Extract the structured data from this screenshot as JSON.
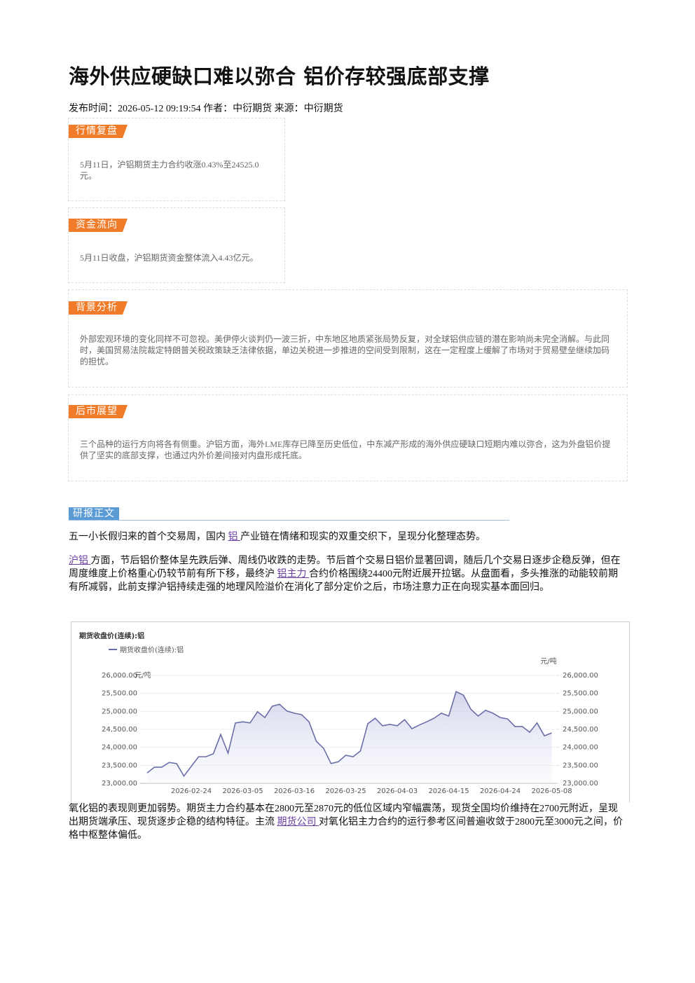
{
  "header": {
    "title": "海外供应硬缺口难以弥合 铝价存较强底部支撑",
    "meta": "发布时间：2026-05-12 09:19:54 作者：中衍期货 来源：中衍期货"
  },
  "sections": [
    {
      "label": "行情复盘",
      "text": "5月11日，沪铝期货主力合约收涨0.43%至24525.0元。"
    },
    {
      "label": "资金流向",
      "text": "5月11日收盘，沪铝期货资金整体流入4.43亿元。"
    },
    {
      "label": "背景分析",
      "text": "外部宏观环境的变化同样不可忽视。美伊停火谈判仍一波三折，中东地区地质紧张局势反复，对全球铝供应链的潜在影响尚未完全消解。与此同时，美国贸易法院裁定特朗普关税政策缺乏法律依据，单边关税进一步推进的空间受到限制，这在一定程度上缓解了市场对于贸易壁垒继续加码的担忧。"
    },
    {
      "label": "后市展望",
      "text": "三个品种的运行方向将各有侧重。沪铝方面，海外LME库存已降至历史低位，中东减产形成的海外供应硬缺口短期内难以弥合，这为外盘铝价提供了坚实的底部支撑，也通过内外价差间接对内盘形成托底。"
    }
  ],
  "report_label": "研报正文",
  "paragraphs": [
    [
      "五一小长假归来的首个交易周，国内 ",
      {
        "link": "铝 "
      },
      "产业链在情绪和现实的双重交织下，呈现分化整理态势。"
    ],
    [
      {
        "link": "沪铝 "
      },
      "方面，节后铝价整体呈先跌后弹、周线仍收跌的走势。节后首个交易日铝价显著回调，随后几个交易日逐步企稳反弹，但在周度维度上价格重心仍较节前有所下移，最终沪 ",
      {
        "link": "铝主力 "
      },
      "合约价格围绕24400元附近展开拉锯。从盘面看，多头推涨的动能较前期有所减弱，此前支撑沪铝持续走强的地理风险溢价在消化了部分定价之后，市场注意力正在向现实基本面回归。"
    ],
    [
      "氧化铝的表现则更加弱势。期货主力合约基本在2800元至2870元的低位区域内窄幅震荡，现货全国均价维持在2700元附近，呈现出期货端承压、现货逐步企稳的结构特征。主流 ",
      {
        "link": "期货公司 "
      },
      "对氧化铝主力合约的运行参考区间普遍收敛于2800元至3000元之间，价格中枢整体偏低。"
    ]
  ],
  "chart_data": {
    "type": "line",
    "title": "期货收盘价(连续):铝",
    "y_label": "元/吨",
    "y2_label": "元/吨",
    "categories": [
      null,
      null,
      null,
      null,
      null,
      null,
      "2026-02-24",
      null,
      null,
      null,
      null,
      null,
      null,
      "2026-03-05",
      null,
      null,
      null,
      null,
      null,
      null,
      "2026-03-16",
      null,
      null,
      null,
      null,
      null,
      null,
      "2026-03-25",
      null,
      null,
      null,
      null,
      null,
      null,
      "2026-04-03",
      null,
      null,
      null,
      null,
      null,
      null,
      "2026-04-15",
      null,
      null,
      null,
      null,
      null,
      null,
      "2026-04-24",
      null,
      null,
      null,
      null,
      null,
      null,
      "2026-05-08"
    ],
    "series": [
      {
        "name": "期货收盘价(连续):铝",
        "color": "#6a6ea8",
        "values": [
          23290,
          23450,
          23450,
          23580,
          23550,
          23200,
          23470,
          23740,
          23740,
          23820,
          24360,
          23840,
          24680,
          24710,
          24680,
          24990,
          24830,
          25140,
          25200,
          25010,
          24950,
          24910,
          24710,
          24170,
          23970,
          23550,
          23600,
          23780,
          23740,
          23900,
          24660,
          24810,
          24600,
          24640,
          24600,
          24770,
          24520,
          24620,
          24710,
          24810,
          24950,
          24870,
          25550,
          25450,
          25060,
          24870,
          25030,
          24950,
          24830,
          24790,
          24580,
          24580,
          24420,
          24680,
          24320,
          24400
        ]
      }
    ],
    "ylim": [
      23000,
      26000
    ],
    "yticks": [
      {
        "value": 23000,
        "label": "23,000.00"
      },
      {
        "value": 23500,
        "label": "23,500.00"
      },
      {
        "value": 24000,
        "label": "24,000.00"
      },
      {
        "value": 24500,
        "label": "24,500.00"
      },
      {
        "value": 25000,
        "label": "25,000.00"
      },
      {
        "value": 25500,
        "label": "25,500.00"
      },
      {
        "value": 26000,
        "label": "26,000.00"
      }
    ],
    "y2lim": [
      23000,
      26000
    ],
    "y2ticks": [
      {
        "value": 23000,
        "label": "23,000.00"
      },
      {
        "value": 23500,
        "label": "23,500.00"
      },
      {
        "value": 24000,
        "label": "24,000.00"
      },
      {
        "value": 24500,
        "label": "24,500.00"
      },
      {
        "value": 25000,
        "label": "25,000.00"
      },
      {
        "value": 25500,
        "label": "25,500.00"
      },
      {
        "value": 26000,
        "label": "26,000.00"
      }
    ],
    "grid": true
  }
}
